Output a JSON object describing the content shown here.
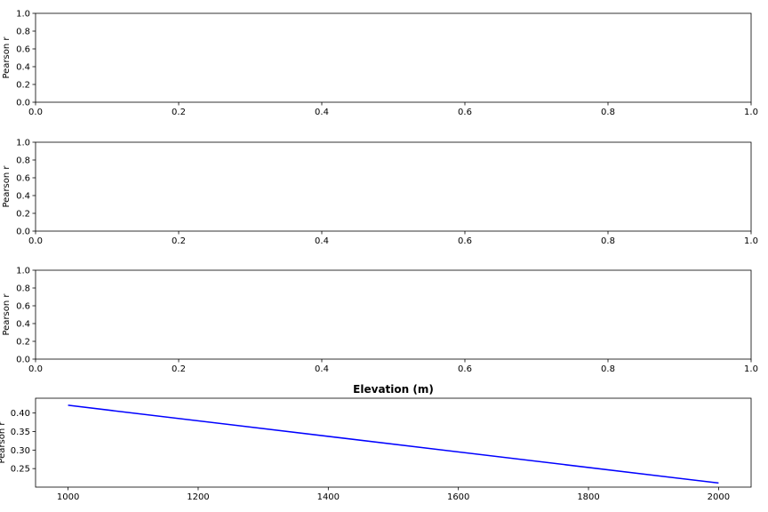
{
  "chart_data": [
    {
      "type": "line",
      "title": "",
      "xlabel": "",
      "ylabel": "Pearson r",
      "xlim": [
        0.0,
        1.0
      ],
      "ylim": [
        0.0,
        1.0
      ],
      "xticks": [
        "0.0",
        "0.2",
        "0.4",
        "0.6",
        "0.8",
        "1.0"
      ],
      "yticks": [
        "0.0",
        "0.2",
        "0.4",
        "0.6",
        "0.8",
        "1.0"
      ],
      "series": []
    },
    {
      "type": "line",
      "title": "",
      "xlabel": "",
      "ylabel": "Pearson r",
      "xlim": [
        0.0,
        1.0
      ],
      "ylim": [
        0.0,
        1.0
      ],
      "xticks": [
        "0.0",
        "0.2",
        "0.4",
        "0.6",
        "0.8",
        "1.0"
      ],
      "yticks": [
        "0.0",
        "0.2",
        "0.4",
        "0.6",
        "0.8",
        "1.0"
      ],
      "series": []
    },
    {
      "type": "line",
      "title": "",
      "xlabel": "",
      "ylabel": "Pearson r",
      "xlim": [
        0.0,
        1.0
      ],
      "ylim": [
        0.0,
        1.0
      ],
      "xticks": [
        "0.0",
        "0.2",
        "0.4",
        "0.6",
        "0.8",
        "1.0"
      ],
      "yticks": [
        "0.0",
        "0.2",
        "0.4",
        "0.6",
        "0.8",
        "1.0"
      ],
      "series": []
    },
    {
      "type": "line",
      "title": "Elevation (m)",
      "xlabel": "",
      "ylabel": "Pearson r",
      "xlim": [
        950,
        2050
      ],
      "ylim": [
        0.2,
        0.44
      ],
      "xticks": [
        "1000",
        "1200",
        "1400",
        "1600",
        "1800",
        "2000"
      ],
      "yticks": [
        "0.25",
        "0.30",
        "0.35",
        "0.40"
      ],
      "series": [
        {
          "color": "#0000ff",
          "x": [
            1000,
            2000
          ],
          "y": [
            0.421,
            0.211
          ]
        }
      ]
    }
  ]
}
